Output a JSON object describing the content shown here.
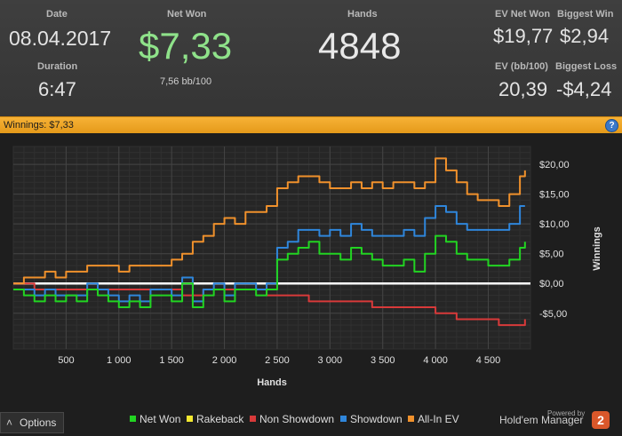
{
  "stats": {
    "date_label": "Date",
    "date_value": "08.04.2017",
    "duration_label": "Duration",
    "duration_value": "6:47",
    "net_won_label": "Net Won",
    "net_won_value": "$7,33",
    "bb_per_100": "7,56 bb/100",
    "hands_label": "Hands",
    "hands_value": "4848",
    "ev_net_won_label": "EV Net Won",
    "ev_net_won_value": "$19,77",
    "biggest_win_label": "Biggest Win",
    "biggest_win_value": "$2,94",
    "ev_bb_label": "EV (bb/100)",
    "ev_bb_value": "20,39",
    "biggest_loss_label": "Biggest Loss",
    "biggest_loss_value": "-$4,24"
  },
  "winnings_bar": {
    "label": "Winnings: $7,33",
    "help_icon": "question-icon",
    "help_text": "?"
  },
  "footer": {
    "options_label": "Options",
    "options_icon": "caret-up-icon",
    "options_glyph": "˄",
    "powered_by": "Powered by",
    "brand": "Hold'em Manager",
    "brand_badge": "2"
  },
  "colors": {
    "net_won": "#22d422",
    "rakeback": "#f2e830",
    "non_showdown": "#d83a3a",
    "showdown": "#2f86db",
    "all_in_ev": "#f0912c"
  },
  "chart_data": {
    "type": "line",
    "xlabel": "Hands",
    "ylabel": "Winnings",
    "xlim": [
      0,
      4900
    ],
    "ylim": [
      -11,
      23
    ],
    "x_ticks": [
      500,
      1000,
      1500,
      2000,
      2500,
      3000,
      3500,
      4000,
      4500
    ],
    "x_tick_labels": [
      "500",
      "1 000",
      "1 500",
      "2 000",
      "2 500",
      "3 000",
      "3 500",
      "4 000",
      "4 500"
    ],
    "y_ticks": [
      -5,
      0,
      5,
      10,
      15,
      20
    ],
    "y_tick_labels": [
      "-$5,00",
      "$0,00",
      "$5,00",
      "$10,00",
      "$15,00",
      "$20,00"
    ],
    "grid": true,
    "series": [
      {
        "name": "Net Won",
        "color": "#22d422",
        "x": [
          0,
          100,
          200,
          300,
          400,
          500,
          600,
          700,
          800,
          900,
          1000,
          1100,
          1200,
          1300,
          1400,
          1500,
          1600,
          1700,
          1800,
          1900,
          2000,
          2100,
          2200,
          2300,
          2400,
          2500,
          2600,
          2700,
          2800,
          2900,
          3000,
          3100,
          3200,
          3300,
          3400,
          3500,
          3600,
          3700,
          3800,
          3900,
          4000,
          4100,
          4200,
          4300,
          4400,
          4500,
          4600,
          4700,
          4800,
          4848
        ],
        "y": [
          -1,
          -2,
          -3,
          -2,
          -3,
          -2,
          -3,
          -1,
          -2,
          -3,
          -4,
          -3,
          -4,
          -2,
          -2,
          -3,
          0,
          -4,
          -2,
          -1,
          -3,
          -1,
          -1,
          -2,
          -1,
          4,
          5,
          6,
          7,
          5,
          5,
          4,
          6,
          5,
          4,
          3,
          3,
          4,
          2,
          5,
          8,
          7,
          5,
          4,
          4,
          3,
          3,
          4,
          6,
          7
        ]
      },
      {
        "name": "Rakeback",
        "color": "#f2e830",
        "x": [
          0,
          4848
        ],
        "y": [
          0,
          0
        ]
      },
      {
        "name": "Non Showdown",
        "color": "#d83a3a",
        "x": [
          0,
          200,
          400,
          600,
          800,
          1000,
          1200,
          1400,
          1600,
          1800,
          2000,
          2200,
          2400,
          2600,
          2800,
          3000,
          3200,
          3400,
          3600,
          3800,
          4000,
          4200,
          4400,
          4600,
          4800,
          4848
        ],
        "y": [
          0,
          -1,
          -1,
          -1,
          -1,
          -1,
          -1,
          -1,
          -2,
          -1,
          -1,
          -1,
          -2,
          -2,
          -3,
          -3,
          -3,
          -4,
          -4,
          -4,
          -5,
          -6,
          -6,
          -7,
          -7,
          -6
        ]
      },
      {
        "name": "Showdown",
        "color": "#2f86db",
        "x": [
          0,
          100,
          200,
          300,
          400,
          500,
          600,
          700,
          800,
          900,
          1000,
          1100,
          1200,
          1300,
          1400,
          1500,
          1600,
          1700,
          1800,
          1900,
          2000,
          2100,
          2200,
          2300,
          2400,
          2500,
          2600,
          2700,
          2800,
          2900,
          3000,
          3100,
          3200,
          3300,
          3400,
          3500,
          3600,
          3700,
          3800,
          3900,
          4000,
          4100,
          4200,
          4300,
          4400,
          4500,
          4600,
          4700,
          4800,
          4848
        ],
        "y": [
          -1,
          -1,
          -2,
          -1,
          -2,
          -2,
          -2,
          0,
          -1,
          -2,
          -3,
          -2,
          -3,
          -1,
          -1,
          -2,
          1,
          -3,
          -1,
          0,
          -2,
          0,
          0,
          -1,
          0,
          6,
          7,
          9,
          9,
          8,
          9,
          8,
          10,
          9,
          8,
          8,
          8,
          9,
          8,
          11,
          13,
          12,
          10,
          9,
          9,
          9,
          9,
          10,
          13,
          13
        ]
      },
      {
        "name": "All-In EV",
        "color": "#f0912c",
        "x": [
          0,
          100,
          200,
          300,
          400,
          500,
          600,
          700,
          800,
          900,
          1000,
          1100,
          1200,
          1300,
          1400,
          1500,
          1600,
          1700,
          1800,
          1900,
          2000,
          2100,
          2200,
          2300,
          2400,
          2500,
          2600,
          2700,
          2800,
          2900,
          3000,
          3100,
          3200,
          3300,
          3400,
          3500,
          3600,
          3700,
          3800,
          3900,
          4000,
          4100,
          4200,
          4300,
          4400,
          4500,
          4600,
          4700,
          4800,
          4848
        ],
        "y": [
          0,
          1,
          1,
          2,
          1,
          2,
          2,
          3,
          3,
          3,
          2,
          3,
          3,
          3,
          3,
          4,
          5,
          7,
          8,
          10,
          11,
          10,
          12,
          12,
          13,
          16,
          17,
          18,
          18,
          17,
          16,
          16,
          17,
          16,
          17,
          16,
          17,
          17,
          16,
          17,
          21,
          19,
          17,
          15,
          14,
          14,
          13,
          15,
          18,
          19
        ]
      }
    ]
  }
}
